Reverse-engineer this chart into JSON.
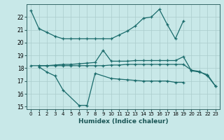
{
  "xlabel": "Humidex (Indice chaleur)",
  "bg_color": "#c8e8e8",
  "grid_color": "#aacccc",
  "line_color": "#1a6b6b",
  "ylim": [
    14.8,
    23.0
  ],
  "xlim": [
    -0.5,
    23.5
  ],
  "yticks": [
    15,
    16,
    17,
    18,
    19,
    20,
    21,
    22
  ],
  "xticks": [
    0,
    1,
    2,
    3,
    4,
    5,
    6,
    7,
    8,
    9,
    10,
    11,
    12,
    13,
    14,
    15,
    16,
    17,
    18,
    19,
    20,
    21,
    22,
    23
  ],
  "series": {
    "top": {
      "x": [
        0,
        1,
        2,
        3,
        4,
        5,
        6,
        7,
        8,
        9,
        10,
        11,
        12,
        13,
        14,
        15,
        16,
        17,
        18,
        19
      ],
      "y": [
        22.5,
        21.1,
        20.8,
        20.5,
        20.3,
        20.3,
        20.3,
        20.3,
        20.3,
        20.3,
        20.3,
        20.6,
        20.9,
        21.3,
        21.9,
        22.0,
        22.6,
        21.4,
        20.3,
        21.7
      ]
    },
    "mid_upper": {
      "x": [
        1,
        2,
        3,
        4,
        5,
        6,
        7,
        8,
        9,
        10,
        11,
        12,
        13,
        14,
        15,
        16,
        17,
        18,
        19,
        20,
        21,
        22,
        23
      ],
      "y": [
        18.2,
        18.2,
        18.25,
        18.3,
        18.3,
        18.35,
        18.4,
        18.45,
        19.4,
        18.55,
        18.55,
        18.55,
        18.6,
        18.6,
        18.6,
        18.6,
        18.6,
        18.6,
        18.9,
        17.8,
        17.7,
        17.5,
        16.6
      ]
    },
    "mid_flat": {
      "x": [
        0,
        1,
        2,
        3,
        4,
        5,
        6,
        7,
        8,
        9,
        10,
        11,
        12,
        13,
        14,
        15,
        16,
        17,
        18,
        19,
        20,
        21,
        22,
        23
      ],
      "y": [
        18.2,
        18.2,
        18.2,
        18.2,
        18.2,
        18.2,
        18.2,
        18.2,
        18.2,
        18.2,
        18.25,
        18.25,
        18.3,
        18.3,
        18.3,
        18.3,
        18.3,
        18.3,
        18.3,
        18.3,
        17.85,
        17.75,
        17.4,
        16.6
      ]
    },
    "dip": {
      "x": [
        1,
        2,
        3,
        4,
        6,
        7,
        8,
        10,
        11,
        12,
        13,
        14,
        15,
        16,
        17,
        18,
        19
      ],
      "y": [
        18.1,
        17.7,
        17.4,
        16.3,
        15.1,
        15.1,
        17.6,
        17.2,
        17.15,
        17.1,
        17.05,
        17.0,
        17.0,
        17.0,
        17.0,
        16.9,
        16.9
      ]
    }
  }
}
